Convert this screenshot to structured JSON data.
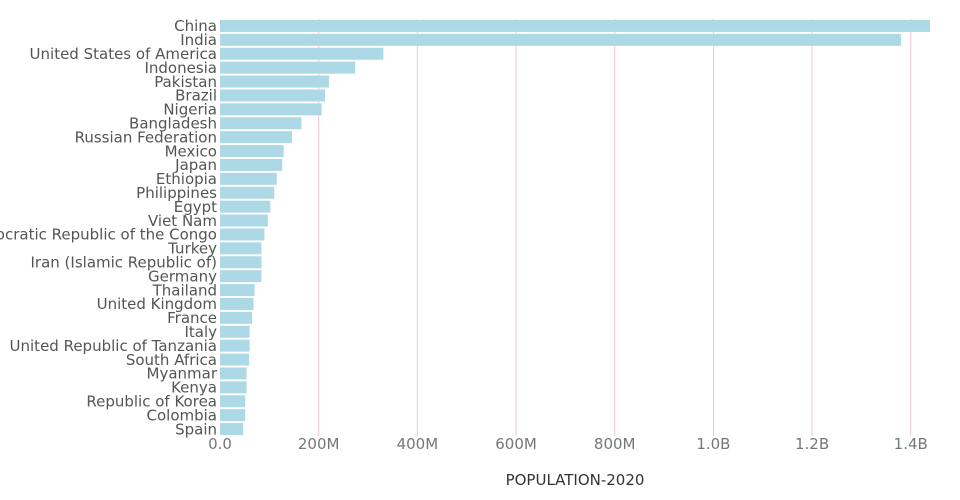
{
  "chart_data": {
    "type": "bar",
    "orientation": "horizontal",
    "title": "",
    "xlabel": "POPULATION-2020",
    "ylabel": "",
    "xlim": [
      0,
      1440000000
    ],
    "x_ticks": [
      0,
      200000000,
      400000000,
      600000000,
      800000000,
      1000000000,
      1200000000,
      1400000000
    ],
    "x_tick_labels": [
      "0.0",
      "200M",
      "400M",
      "600M",
      "800M",
      "1.0B",
      "1.2B",
      "1.4B"
    ],
    "grid": "vertical",
    "colors": {
      "bar": "#add8e6",
      "grid": "#f2c4d4"
    },
    "categories": [
      "China",
      "India",
      "United States of America",
      "Indonesia",
      "Pakistan",
      "Brazil",
      "Nigeria",
      "Bangladesh",
      "Russian Federation",
      "Mexico",
      "Japan",
      "Ethiopia",
      "Philippines",
      "Egypt",
      "Viet Nam",
      "Democratic Republic of the Congo",
      "Turkey",
      "Iran (Islamic Republic of)",
      "Germany",
      "Thailand",
      "United Kingdom",
      "France",
      "Italy",
      "United Republic of Tanzania",
      "South Africa",
      "Myanmar",
      "Kenya",
      "Republic of Korea",
      "Colombia",
      "Spain"
    ],
    "values": [
      1439000000,
      1380000000,
      331000000,
      274000000,
      221000000,
      213000000,
      206000000,
      165000000,
      146000000,
      129000000,
      126000000,
      115000000,
      110000000,
      102000000,
      97000000,
      90000000,
      84000000,
      84000000,
      84000000,
      70000000,
      68000000,
      65000000,
      60000000,
      60000000,
      59000000,
      54000000,
      54000000,
      51000000,
      51000000,
      47000000
    ]
  }
}
